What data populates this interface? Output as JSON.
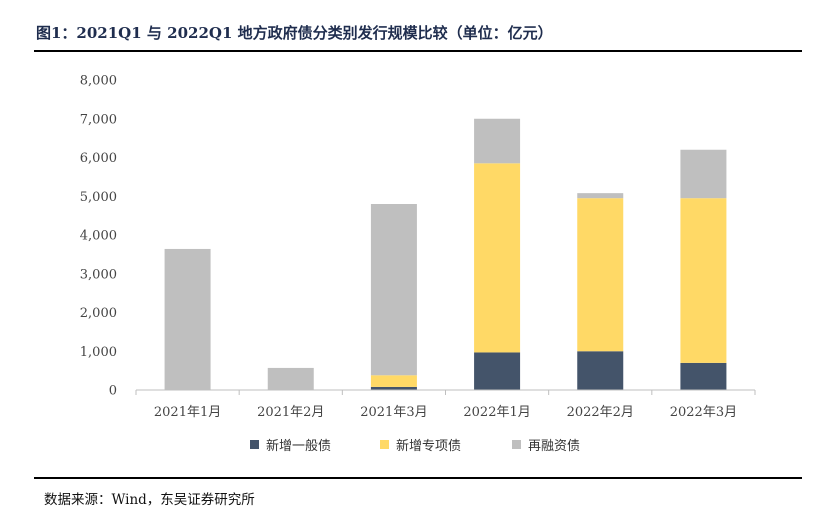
{
  "figure_title": "图1：2021Q1 与 2022Q1 地方政府债分类别发行规模比较（单位：亿元）",
  "source": "数据来源：Wind，东吴证券研究所",
  "chart_data": {
    "type": "bar",
    "stacked": true,
    "categories": [
      "2021年1月",
      "2021年2月",
      "2021年3月",
      "2022年1月",
      "2022年2月",
      "2022年3月"
    ],
    "series": [
      {
        "name": "新增一般债",
        "color": "#44546a",
        "values": [
          0,
          0,
          80,
          970,
          1000,
          700
        ]
      },
      {
        "name": "新增专项债",
        "color": "#ffd966",
        "values": [
          0,
          0,
          300,
          4880,
          3950,
          4250
        ]
      },
      {
        "name": "再融资债",
        "color": "#bfbfbf",
        "values": [
          3640,
          570,
          4420,
          1150,
          130,
          1250
        ]
      }
    ],
    "ylim": [
      0,
      8000
    ],
    "yticks": [
      "8,000",
      "7,000",
      "6,000",
      "5,000",
      "4,000",
      "3,000",
      "2,000",
      "1,000",
      "0"
    ],
    "ytick_values": [
      8000,
      7000,
      6000,
      5000,
      4000,
      3000,
      2000,
      1000,
      0
    ],
    "legend_position": "bottom",
    "grid": false
  }
}
